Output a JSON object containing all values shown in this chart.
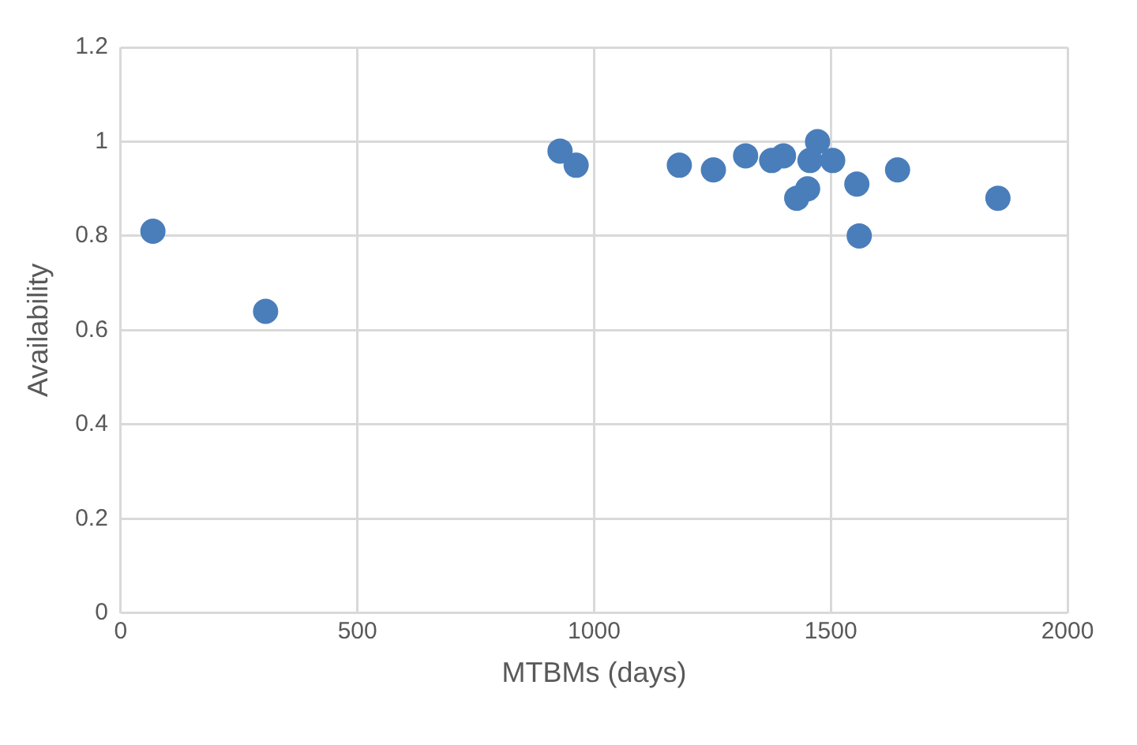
{
  "chart_data": {
    "type": "scatter",
    "xlabel": "MTBMs (days)",
    "ylabel": "Availability",
    "x": [
      68,
      306,
      928,
      962,
      1180,
      1252,
      1320,
      1375,
      1400,
      1456,
      1472,
      1504,
      1428,
      1451,
      1555,
      1560,
      1641,
      1853
    ],
    "values": [
      0.81,
      0.64,
      0.98,
      0.95,
      0.95,
      0.94,
      0.97,
      0.96,
      0.97,
      0.96,
      1.0,
      0.96,
      0.88,
      0.9,
      0.91,
      0.8,
      0.94,
      0.88
    ],
    "color": "#4a7ebb",
    "marker": "circle",
    "xlim": [
      0,
      2000
    ],
    "xticks": [
      0,
      500,
      1000,
      1500,
      2000
    ],
    "ylim": [
      0,
      1.2
    ],
    "yticks": [
      0,
      0.2,
      0.4,
      0.6,
      0.8,
      1,
      1.2
    ],
    "grid": true,
    "legend": false
  }
}
